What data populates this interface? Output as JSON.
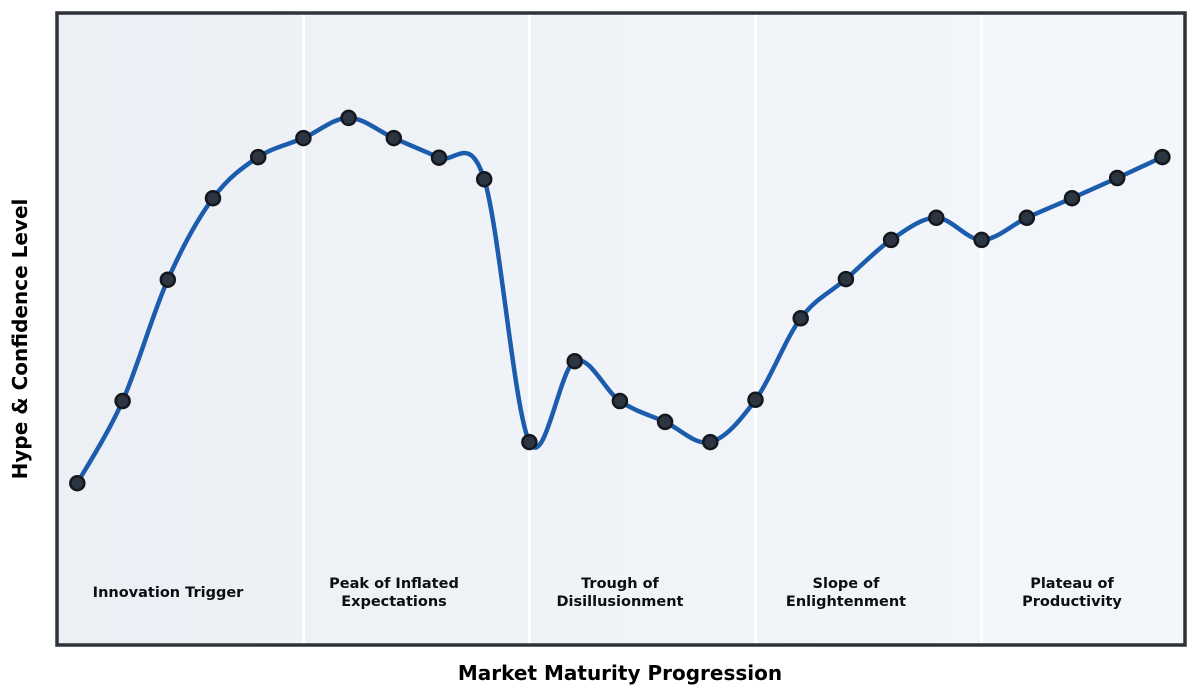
{
  "chart_data": {
    "type": "line",
    "title": "",
    "xlabel": "Market Maturity Progression",
    "ylabel": "Hype & Confidence Level",
    "x": [
      0,
      1,
      2,
      3,
      4,
      5,
      6,
      7,
      8,
      9,
      10,
      11,
      12,
      13,
      14,
      15,
      16,
      17,
      18,
      19,
      20,
      21,
      22,
      23,
      24
    ],
    "values": [
      25.6,
      38.6,
      57.8,
      70.7,
      77.2,
      80.2,
      83.4,
      80.2,
      77.1,
      73.7,
      32.1,
      44.9,
      38.6,
      35.3,
      32.1,
      38.8,
      51.7,
      57.9,
      64.1,
      67.6,
      64.1,
      67.6,
      70.7,
      73.9,
      77.2
    ],
    "ylim": [
      0,
      100
    ],
    "xlim": [
      -0.45,
      24.5
    ],
    "grid": false,
    "legend": null,
    "curve_style": "smooth-spline-with-markers",
    "phase_dividers_x": [
      5,
      10,
      15,
      20
    ],
    "phases": [
      {
        "label": "Innovation Trigger",
        "lines": [
          "Innovation Trigger"
        ],
        "x_center": 2
      },
      {
        "label": "Peak of Inflated Expectations",
        "lines": [
          "Peak of Inflated",
          "Expectations"
        ],
        "x_center": 7
      },
      {
        "label": "Trough of Disillusionment",
        "lines": [
          "Trough of",
          "Disillusionment"
        ],
        "x_center": 12
      },
      {
        "label": "Slope of Enlightenment",
        "lines": [
          "Slope of",
          "Enlightenment"
        ],
        "x_center": 17
      },
      {
        "label": "Plateau of Productivity",
        "lines": [
          "Plateau of",
          "Productivity"
        ],
        "x_center": 22
      }
    ],
    "colors": {
      "line": "#1c5cad",
      "marker_fill": "#2c3542",
      "marker_edge": "#14181d",
      "plot_bg_left": "#ecf0f5",
      "plot_bg_right": "#f3f6fa",
      "divider": "#ffffff",
      "border": "#2e3338",
      "label_text": "#0b0e12"
    }
  }
}
